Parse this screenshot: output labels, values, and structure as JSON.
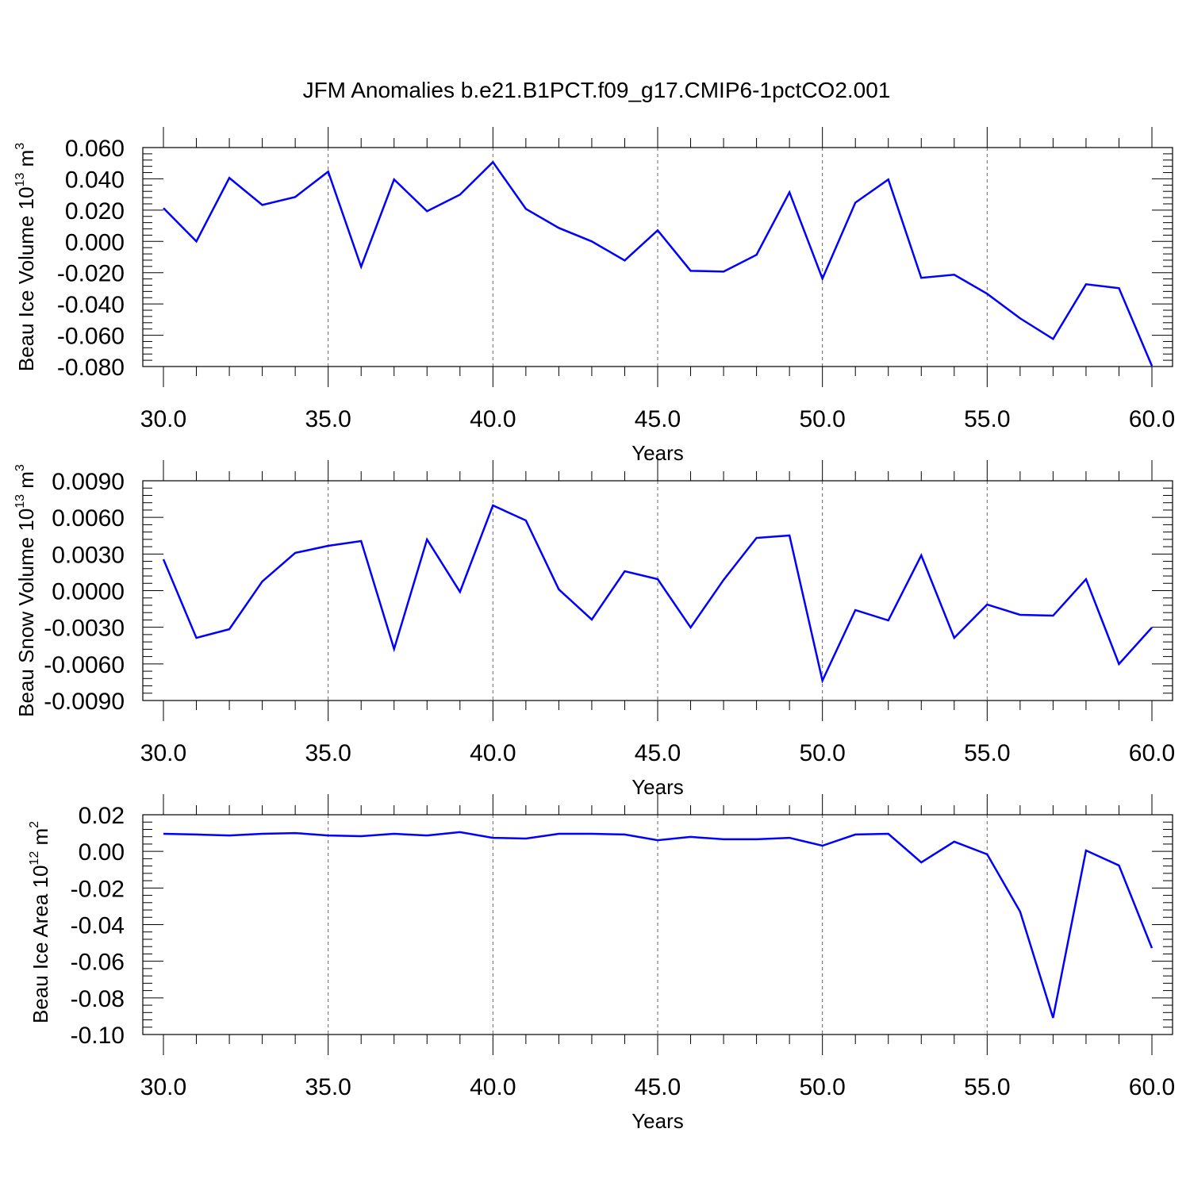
{
  "title": "JFM Anomalies b.e21.B1PCT.f09_g17.CMIP6-1pctCO2.001",
  "line_color": "#0000ff",
  "chart_data": [
    {
      "type": "line",
      "ylabel": "Beau Ice Volume 10",
      "ylabel_exp": "13",
      "ylabel_unit": " m",
      "ylabel_unit_exp": "3",
      "xlabel": "Years",
      "xlim": [
        30,
        60
      ],
      "ylim": [
        -0.08,
        0.06
      ],
      "yticks": [
        0.06,
        0.04,
        0.02,
        0.0,
        -0.02,
        -0.04,
        -0.06,
        -0.08
      ],
      "ytick_labels": [
        "0.060",
        "0.040",
        "0.020",
        "0.000",
        "-0.020",
        "-0.040",
        "-0.060",
        "-0.080"
      ],
      "xticks": [
        30,
        35,
        40,
        45,
        50,
        55,
        60
      ],
      "xtick_labels": [
        "30.0",
        "35.0",
        "40.0",
        "45.0",
        "50.0",
        "55.0",
        "60.0"
      ],
      "grid": "vertical dashed at major x ticks",
      "x": [
        30,
        31,
        32,
        33,
        34,
        35,
        36,
        37,
        38,
        39,
        40,
        41,
        42,
        43,
        44,
        45,
        46,
        47,
        48,
        49,
        50,
        51,
        52,
        53,
        54,
        55,
        56,
        57,
        58,
        59,
        60
      ],
      "y": [
        0.0213,
        0.0,
        0.0406,
        0.0233,
        0.0284,
        0.0446,
        -0.0162,
        0.0396,
        0.0193,
        0.0299,
        0.0507,
        0.0208,
        0.0086,
        0.0,
        -0.0122,
        0.0071,
        -0.0188,
        -0.0193,
        -0.0086,
        0.0314,
        -0.0238,
        0.0248,
        0.0396,
        -0.0233,
        -0.0213,
        -0.0335,
        -0.0492,
        -0.0624,
        -0.0274,
        -0.0299,
        -0.0796
      ]
    },
    {
      "type": "line",
      "ylabel": "Beau Snow Volume 10",
      "ylabel_exp": "13",
      "ylabel_unit": " m",
      "ylabel_unit_exp": "3",
      "xlabel": "Years",
      "xlim": [
        30,
        60
      ],
      "ylim": [
        -0.009,
        0.009
      ],
      "yticks": [
        0.009,
        0.006,
        0.003,
        0.0,
        -0.003,
        -0.006,
        -0.009
      ],
      "ytick_labels": [
        "0.0090",
        "0.0060",
        "0.0030",
        "0.0000",
        "-0.0030",
        "-0.0060",
        "-0.0090"
      ],
      "xticks": [
        30,
        35,
        40,
        45,
        50,
        55,
        60
      ],
      "xtick_labels": [
        "30.0",
        "35.0",
        "40.0",
        "45.0",
        "50.0",
        "55.0",
        "60.0"
      ],
      "grid": "vertical dashed at major x ticks",
      "x": [
        30,
        31,
        32,
        33,
        34,
        35,
        36,
        37,
        38,
        39,
        40,
        41,
        42,
        43,
        44,
        45,
        46,
        47,
        48,
        49,
        50,
        51,
        52,
        53,
        54,
        55,
        56,
        57,
        58,
        59,
        60
      ],
      "y": [
        0.00257,
        -0.00387,
        -0.00316,
        0.00075,
        0.00309,
        0.00367,
        0.00406,
        -0.00478,
        0.00419,
        -0.0001,
        0.00698,
        0.00575,
        0.0001,
        -0.00237,
        0.00159,
        0.00094,
        -0.00302,
        0.00088,
        0.00432,
        0.00452,
        -0.00737,
        -0.00159,
        -0.00244,
        0.00289,
        -0.00387,
        -0.00114,
        -0.00198,
        -0.00205,
        0.00094,
        -0.00601,
        -0.00302
      ]
    },
    {
      "type": "line",
      "ylabel": "Beau Ice Area 10",
      "ylabel_exp": "12",
      "ylabel_unit": " m",
      "ylabel_unit_exp": "2",
      "xlabel": "Years",
      "xlim": [
        30,
        60
      ],
      "ylim": [
        -0.1,
        0.02
      ],
      "yticks": [
        0.02,
        0.0,
        -0.02,
        -0.04,
        -0.06,
        -0.08,
        -0.1
      ],
      "ytick_labels": [
        "0.02",
        "0.00",
        "-0.02",
        "-0.04",
        "-0.06",
        "-0.08",
        "-0.10"
      ],
      "xticks": [
        30,
        35,
        40,
        45,
        50,
        55,
        60
      ],
      "xtick_labels": [
        "30.0",
        "35.0",
        "40.0",
        "45.0",
        "50.0",
        "55.0",
        "60.0"
      ],
      "grid": "vertical dashed at major x ticks",
      "x": [
        30,
        31,
        32,
        33,
        34,
        35,
        36,
        37,
        38,
        39,
        40,
        41,
        42,
        43,
        44,
        45,
        46,
        47,
        48,
        49,
        50,
        51,
        52,
        53,
        54,
        55,
        56,
        57,
        58,
        59,
        60
      ],
      "y": [
        0.0096,
        0.0092,
        0.0087,
        0.0096,
        0.01,
        0.0087,
        0.0083,
        0.0096,
        0.0087,
        0.0105,
        0.0074,
        0.007,
        0.0096,
        0.0096,
        0.0092,
        0.0061,
        0.0079,
        0.0066,
        0.0066,
        0.0074,
        0.0031,
        0.0092,
        0.0096,
        -0.006,
        0.0053,
        -0.0016,
        -0.0329,
        -0.0909,
        0.0005,
        -0.0077,
        -0.0528
      ]
    }
  ]
}
